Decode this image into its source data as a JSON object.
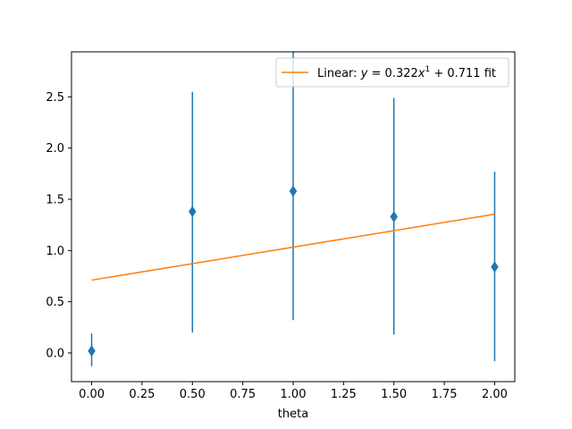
{
  "chart_data": {
    "type": "scatter",
    "xlabel": "theta",
    "ylabel": "",
    "xlim": [
      -0.1,
      2.1
    ],
    "ylim": [
      -0.28,
      2.94
    ],
    "xticks": [
      0.0,
      0.25,
      0.5,
      0.75,
      1.0,
      1.25,
      1.5,
      1.75,
      2.0
    ],
    "xtick_labels": [
      "0.00",
      "0.25",
      "0.50",
      "0.75",
      "1.00",
      "1.25",
      "1.50",
      "1.75",
      "2.00"
    ],
    "yticks": [
      0.0,
      0.5,
      1.0,
      1.5,
      2.0,
      2.5
    ],
    "ytick_labels": [
      "0.0",
      "0.5",
      "1.0",
      "1.5",
      "2.0",
      "2.5"
    ],
    "grid": false,
    "legend_position": "top-right",
    "series": [
      {
        "kind": "errorbar",
        "marker": "diamond",
        "color": "#1f77b4",
        "x": [
          0.0,
          0.5,
          1.0,
          1.5,
          2.0
        ],
        "y": [
          0.02,
          1.38,
          1.58,
          1.33,
          0.84
        ],
        "yerr_low": [
          -0.13,
          0.2,
          0.32,
          0.18,
          -0.08
        ],
        "yerr_high": [
          0.19,
          2.55,
          2.95,
          2.49,
          1.77
        ]
      },
      {
        "kind": "line",
        "name": "Linear: y = 0.322x¹ + 0.711 fit",
        "color": "#ff7f0e",
        "x": [
          0.0,
          2.0
        ],
        "y": [
          0.711,
          1.355
        ]
      }
    ],
    "legend": {
      "prefix": "Linear: ",
      "eq_y": "y",
      "eq_mid": " = 0.322",
      "eq_x": "x",
      "eq_sup": "1",
      "eq_tail": " + 0.711",
      "suffix": " fit"
    }
  }
}
